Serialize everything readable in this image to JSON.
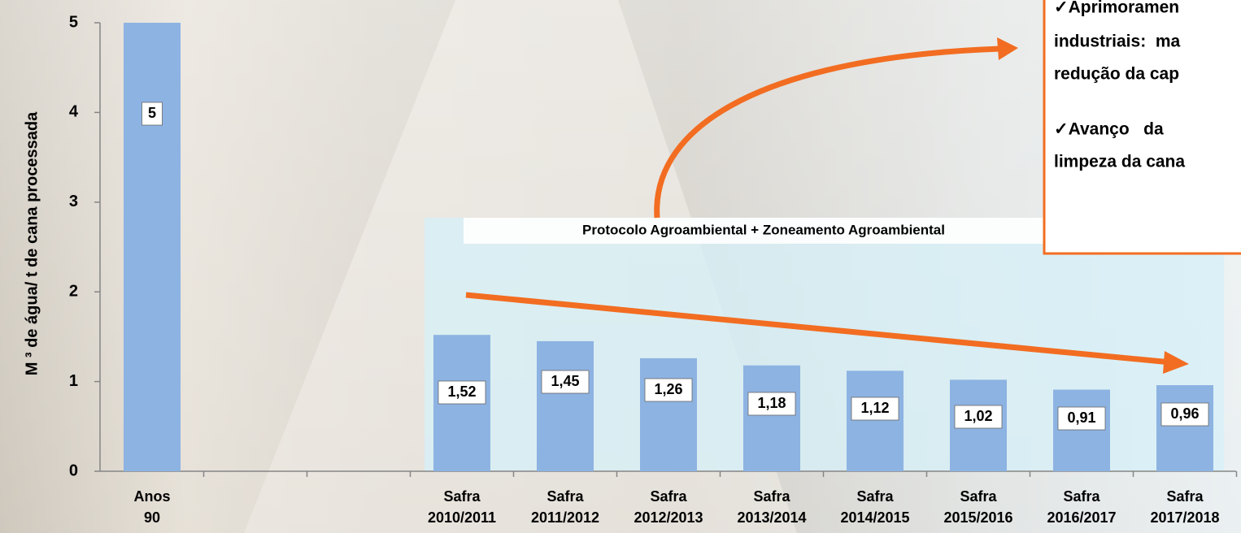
{
  "chart_data": {
    "type": "bar",
    "y_label": "M ³ de água/ t de cana processada",
    "categories": [
      "Anos 90",
      null,
      null,
      "Safra 2010/2011",
      "Safra 2011/2012",
      "Safra 2012/2013",
      "Safra 2013/2014",
      "Safra 2014/2015",
      "Safra 2015/2016",
      "Safra 2016/2017",
      "Safra 2017/2018"
    ],
    "values": [
      5,
      null,
      null,
      1.52,
      1.45,
      1.26,
      1.18,
      1.12,
      1.02,
      0.91,
      0.96
    ],
    "value_labels": [
      "5",
      null,
      null,
      "1,52",
      "1,45",
      "1,26",
      "1,18",
      "1,12",
      "1,02",
      "0,91",
      "0,96"
    ],
    "color": "#8db3e2",
    "ylim": [
      0,
      5
    ],
    "yticks": [
      0,
      1,
      2,
      3,
      4,
      5
    ],
    "annotations": {
      "band_label": "Protocolo Agroambiental + Zoneamento Agroambiental",
      "box_lines": [
        "✓Aprimoramen",
        "industriais:  ma",
        "redução da cap",
        "✓Avanço   da",
        "limpeza da cana"
      ]
    }
  }
}
